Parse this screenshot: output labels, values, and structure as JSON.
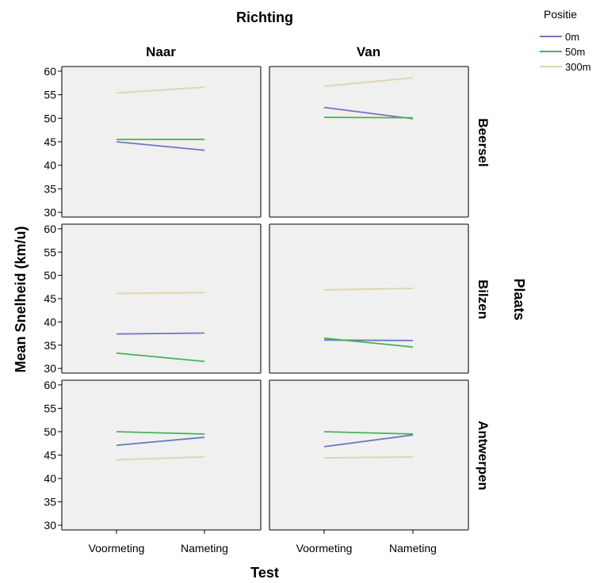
{
  "chart_data": {
    "type": "line",
    "title": "Richting",
    "xlabel": "Test",
    "ylabel": "Mean Snelheid (km/u)",
    "row_facet_label": "Plaats",
    "column_facets": [
      "Naar",
      "Van"
    ],
    "row_facets": [
      "Beersel",
      "Bilzen",
      "Antwerpen"
    ],
    "categories": [
      "Voormeting",
      "Nameting"
    ],
    "ylim": [
      29,
      61
    ],
    "y_ticks": [
      "30",
      "35",
      "40",
      "45",
      "50",
      "55",
      "60"
    ],
    "legend": {
      "title": "Positie",
      "position": "top-right",
      "entries": [
        {
          "name": "0m",
          "color": "#6f75c2"
        },
        {
          "name": "50m",
          "color": "#44b356"
        },
        {
          "name": "300m",
          "color": "#ddd4aa"
        }
      ]
    },
    "grid": false,
    "panel_background": "#f0f0f0",
    "panels": [
      {
        "column": "Naar",
        "row": "Beersel",
        "series": [
          {
            "name": "0m",
            "values": [
              45.0,
              43.2
            ]
          },
          {
            "name": "50m",
            "values": [
              45.5,
              45.5
            ]
          },
          {
            "name": "300m",
            "values": [
              55.4,
              56.6
            ]
          }
        ]
      },
      {
        "column": "Van",
        "row": "Beersel",
        "series": [
          {
            "name": "0m",
            "values": [
              52.3,
              49.9
            ]
          },
          {
            "name": "50m",
            "values": [
              50.2,
              50.1
            ]
          },
          {
            "name": "300m",
            "values": [
              56.8,
              58.6
            ]
          }
        ]
      },
      {
        "column": "Naar",
        "row": "Bilzen",
        "series": [
          {
            "name": "0m",
            "values": [
              37.4,
              37.6
            ]
          },
          {
            "name": "50m",
            "values": [
              33.3,
              31.5
            ]
          },
          {
            "name": "300m",
            "values": [
              46.1,
              46.3
            ]
          }
        ]
      },
      {
        "column": "Van",
        "row": "Bilzen",
        "series": [
          {
            "name": "0m",
            "values": [
              36.1,
              36.0
            ]
          },
          {
            "name": "50m",
            "values": [
              36.5,
              34.6
            ]
          },
          {
            "name": "300m",
            "values": [
              46.9,
              47.2
            ]
          }
        ]
      },
      {
        "column": "Naar",
        "row": "Antwerpen",
        "series": [
          {
            "name": "0m",
            "values": [
              47.1,
              48.8
            ]
          },
          {
            "name": "50m",
            "values": [
              50.0,
              49.5
            ]
          },
          {
            "name": "300m",
            "values": [
              44.0,
              44.6
            ]
          }
        ]
      },
      {
        "column": "Van",
        "row": "Antwerpen",
        "series": [
          {
            "name": "0m",
            "values": [
              46.8,
              49.3
            ]
          },
          {
            "name": "50m",
            "values": [
              50.0,
              49.5
            ]
          },
          {
            "name": "300m",
            "values": [
              44.4,
              44.6
            ]
          }
        ]
      }
    ]
  }
}
